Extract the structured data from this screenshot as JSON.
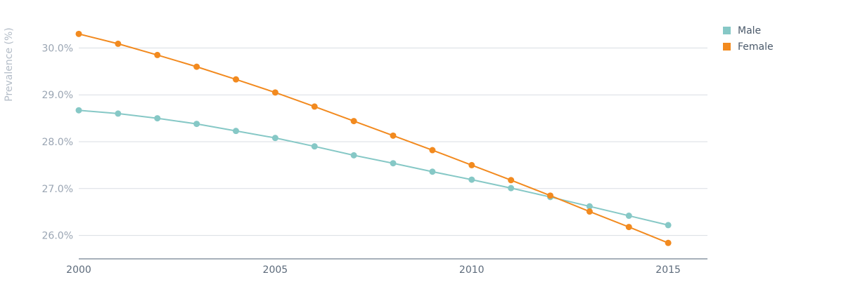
{
  "chart_data": {
    "type": "line",
    "title": "",
    "xlabel": "",
    "ylabel": "Prevalence (%)",
    "x": [
      2000,
      2001,
      2002,
      2003,
      2004,
      2005,
      2006,
      2007,
      2008,
      2009,
      2010,
      2011,
      2012,
      2013,
      2014,
      2015
    ],
    "x_ticks": [
      "2000",
      "2005",
      "2010",
      "2015"
    ],
    "y_ticks": [
      "26.0%",
      "27.0%",
      "28.0%",
      "29.0%",
      "30.0%"
    ],
    "y_tick_values": [
      26,
      27,
      28,
      29,
      30
    ],
    "xlim": [
      2000,
      2016
    ],
    "ylim": [
      25.5,
      30.5
    ],
    "grid": true,
    "legend_position": "top-right",
    "series": [
      {
        "name": "Male",
        "color": "#86c8c6",
        "values": [
          28.67,
          28.6,
          28.5,
          28.38,
          28.23,
          28.08,
          27.9,
          27.71,
          27.54,
          27.36,
          27.19,
          27.01,
          26.82,
          26.62,
          26.42,
          26.22
        ]
      },
      {
        "name": "Female",
        "color": "#f28a1f",
        "values": [
          30.3,
          30.09,
          29.85,
          29.6,
          29.33,
          29.05,
          28.75,
          28.44,
          28.13,
          27.82,
          27.5,
          27.18,
          26.85,
          26.51,
          26.18,
          25.84
        ]
      }
    ]
  }
}
